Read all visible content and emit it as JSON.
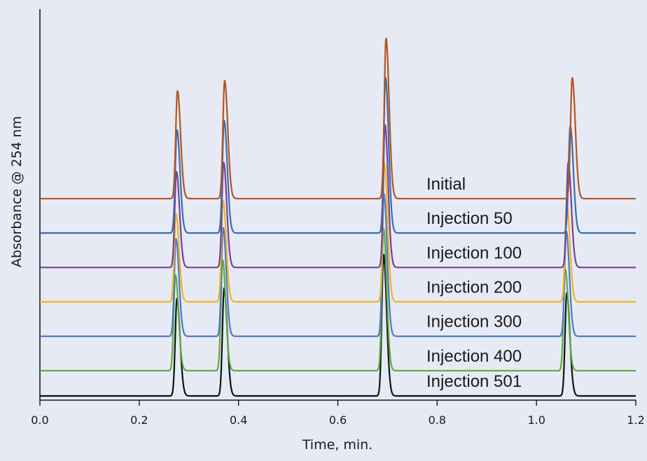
{
  "chart_data": {
    "type": "line",
    "xlabel": "Time, min.",
    "ylabel": "Absorbance @ 254 nm",
    "xlim": [
      0.0,
      1.2
    ],
    "x_ticks": [
      "0.0",
      "0.2",
      "0.4",
      "0.6",
      "0.8",
      "1.0",
      "1.2"
    ],
    "y_ticks_shown": false,
    "grid": false,
    "legend": "inline labels at right, stacked top to bottom",
    "series": [
      {
        "name": "Initial",
        "color": "#b5561f",
        "baseline": 0.86,
        "peaks": [
          {
            "t": 0.277,
            "height": 5.75
          },
          {
            "t": 0.372,
            "height": 6.3
          },
          {
            "t": 0.697,
            "height": 8.55
          },
          {
            "t": 1.072,
            "height": 6.45
          }
        ]
      },
      {
        "name": "Injection 50",
        "color": "#3a6eae",
        "baseline": 0.71,
        "peaks": [
          {
            "t": 0.276,
            "height": 5.5
          },
          {
            "t": 0.371,
            "height": 6.0
          },
          {
            "t": 0.696,
            "height": 8.3
          },
          {
            "t": 1.068,
            "height": 5.7
          }
        ]
      },
      {
        "name": "Injection 100",
        "color": "#7a3e9c",
        "baseline": 0.56,
        "peaks": [
          {
            "t": 0.275,
            "height": 5.1
          },
          {
            "t": 0.37,
            "height": 5.6
          },
          {
            "t": 0.695,
            "height": 7.6
          },
          {
            "t": 1.064,
            "height": 5.6
          }
        ]
      },
      {
        "name": "Injection 200",
        "color": "#f0b51e",
        "baseline": 0.41,
        "peaks": [
          {
            "t": 0.274,
            "height": 4.7
          },
          {
            "t": 0.369,
            "height": 5.4
          },
          {
            "t": 0.694,
            "height": 7.4
          },
          {
            "t": 1.061,
            "height": 5.3
          }
        ]
      },
      {
        "name": "Injection 300",
        "color": "#4a79c8",
        "baseline": 0.26,
        "peaks": [
          {
            "t": 0.274,
            "height": 5.2
          },
          {
            "t": 0.369,
            "height": 5.8
          },
          {
            "t": 0.693,
            "height": 7.6
          },
          {
            "t": 1.06,
            "height": 5.6
          }
        ]
      },
      {
        "name": "Injection 400",
        "color": "#5cac3e",
        "baseline": 0.11,
        "peaks": [
          {
            "t": 0.273,
            "height": 5.1
          },
          {
            "t": 0.368,
            "height": 5.9
          },
          {
            "t": 0.692,
            "height": 7.6
          },
          {
            "t": 1.058,
            "height": 5.4
          }
        ]
      },
      {
        "name": "Injection 501",
        "color": "#111111",
        "baseline": 0.0,
        "peaks": [
          {
            "t": 0.276,
            "height": 5.2
          },
          {
            "t": 0.371,
            "height": 5.75
          },
          {
            "t": 0.692,
            "height": 7.55
          },
          {
            "t": 1.061,
            "height": 5.5
          }
        ]
      }
    ]
  }
}
